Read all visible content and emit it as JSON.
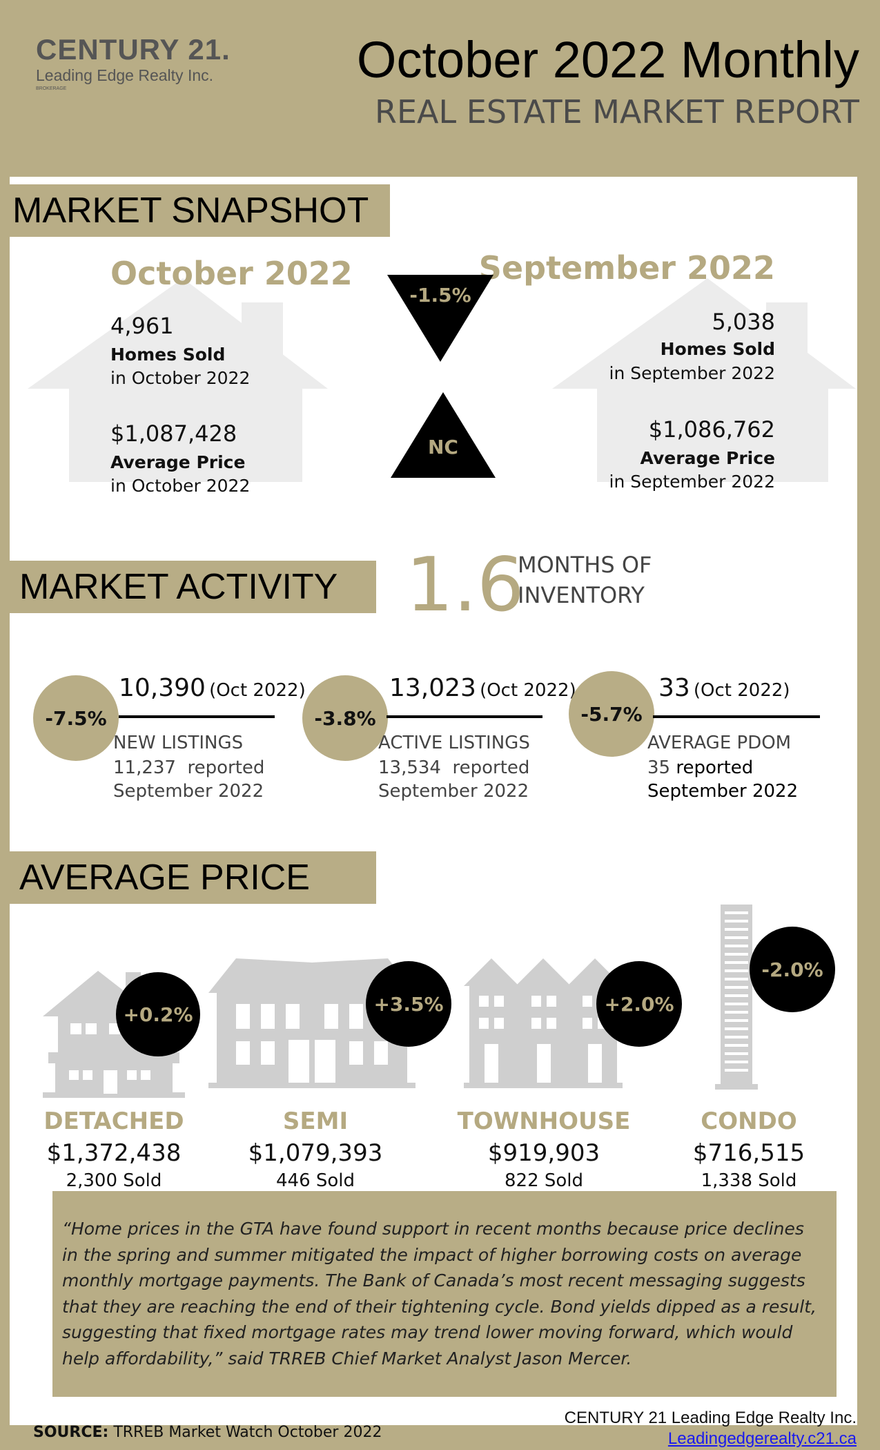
{
  "header": {
    "logo_brand": "CENTURY 21.",
    "logo_company": "Leading Edge Realty Inc.",
    "logo_small": "BROKERAGE",
    "title": "October 2022 Monthly",
    "subtitle": "REAL ESTATE MARKET REPORT"
  },
  "snapshot": {
    "heading": "MARKET SNAPSHOT",
    "current": {
      "month": "October 2022",
      "homes_sold_value": "4,961",
      "homes_sold_label": "Homes Sold",
      "homes_sold_sub": "in October 2022",
      "avg_price_value": "$1,087,428",
      "avg_price_label": "Average Price",
      "avg_price_sub": "in October 2022"
    },
    "previous": {
      "month": "September 2022",
      "homes_sold_value": "5,038",
      "homes_sold_label": "Homes Sold",
      "homes_sold_sub": "in September 2022",
      "avg_price_value": "$1,086,762",
      "avg_price_label": "Average Price",
      "avg_price_sub": "in September 2022"
    },
    "sold_change": "-1.5%",
    "price_change": "NC"
  },
  "activity": {
    "heading": "MARKET ACTIVITY",
    "moi_value": "1.6",
    "moi_line1": "MONTHS OF",
    "moi_line2": "INVENTORY",
    "items": [
      {
        "change": "-7.5%",
        "value": "10,390",
        "period": "(Oct 2022)",
        "label": "NEW LISTINGS",
        "prev": "11,237  reported",
        "prev_month": "September 2022"
      },
      {
        "change": "-3.8%",
        "value": "13,023",
        "period": "(Oct 2022)",
        "label": "ACTIVE LISTINGS",
        "prev": "13,534  reported",
        "prev_month": "September 2022"
      },
      {
        "change": "-5.7%",
        "value": "33",
        "period": "(Oct 2022)",
        "label": "AVERAGE PDOM",
        "prev_num": "35",
        "prev_word": "reported",
        "prev_month": "September 2022"
      }
    ]
  },
  "avg_price": {
    "heading": "AVERAGE PRICE",
    "types": [
      {
        "change": "+0.2%",
        "name": "DETACHED",
        "price": "$1,372,438",
        "sold": "2,300 Sold"
      },
      {
        "change": "+3.5%",
        "name": "SEMI",
        "price": "$1,079,393",
        "sold": "446 Sold"
      },
      {
        "change": "+2.0%",
        "name": "TOWNHOUSE",
        "price": "$919,903",
        "sold": "822 Sold"
      },
      {
        "change": "-2.0%",
        "name": "CONDO",
        "price": "$716,515",
        "sold": "1,338 Sold"
      }
    ]
  },
  "quote": "“Home prices in the GTA have found support in recent months because price declines in the spring and summer mitigated the impact of higher borrowing costs on average monthly mortgage payments. The Bank of Canada’s most recent messaging suggests that they are reaching the end of their tightening cycle. Bond yields dipped as a result, suggesting that fixed mortgage rates may trend lower moving forward, which would help affordability,” said TRREB Chief Market Analyst Jason Mercer.",
  "footer": {
    "source_label": "SOURCE:",
    "source_text": "TRREB Market Watch October 2022",
    "company": "CENTURY 21 Leading Edge Realty Inc.",
    "website": "Leadingedgerealty.c21.ca"
  },
  "colors": {
    "tan": "#b8ad86",
    "gold_text": "#b5a981",
    "black": "#000000",
    "white": "#ffffff",
    "house_gray": "#cfcfcf"
  }
}
